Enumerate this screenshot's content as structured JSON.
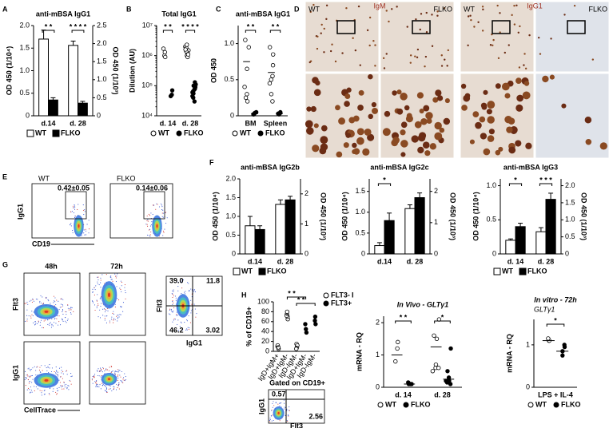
{
  "chart_data": [
    {
      "type": "bar",
      "panel": "A",
      "title": "anti-mBSA IgG1",
      "ylabel": "OD 450 (1/10⁴)",
      "y2label": "OD 450 (1/10³)",
      "categories": [
        "d.14",
        "d. 28"
      ],
      "point_axes": [
        "y",
        "y2"
      ],
      "series": [
        {
          "name": "WT",
          "color": "#ffffff",
          "values": [
            1.7,
            1.95
          ],
          "errors": [
            0.2,
            0.12
          ]
        },
        {
          "name": "FLKO",
          "color": "#000000",
          "values": [
            0.35,
            0.35
          ],
          "errors": [
            0.05,
            0.05
          ]
        }
      ],
      "ylim": [
        0,
        2
      ],
      "yticks": [
        0,
        0.5,
        {
          "value": 1,
          "label": "1.0"
        },
        1.5,
        {
          "value": 2,
          "label": "2.0"
        }
      ],
      "y2lim": [
        0,
        2.5
      ],
      "y2ticks": [
        0,
        0.5,
        {
          "value": 1,
          "label": "1.0"
        },
        1.5,
        {
          "value": 2,
          "label": "2.0"
        },
        2.5
      ],
      "significance": [
        "* *",
        "* * * *"
      ]
    },
    {
      "type": "dot",
      "panel": "B",
      "title": "Total IgG1",
      "ylabel": "Dilution (AU)",
      "log_scale": true,
      "categories": [
        "d. 14",
        "d. 28"
      ],
      "series": [
        {
          "name": "WT",
          "marker": "open",
          "values": [
            [
              1300000,
              1000000,
              1700000,
              900000
            ],
            [
              1500000,
              2000000,
              1200000,
              1800000,
              1000000,
              2300000,
              1400000,
              900000,
              1600000,
              1100000
            ]
          ]
        },
        {
          "name": "FLKO",
          "marker": "filled",
          "values": [
            [
              70000,
              50000,
              45000
            ],
            [
              90000,
              60000,
              130000,
              40000,
              75000,
              55000,
              100000,
              30000,
              65000,
              80000,
              45000,
              110000
            ]
          ]
        }
      ],
      "ylim": [
        10000,
        10000000
      ],
      "yticks": [
        {
          "value": 10000,
          "label": "10⁴"
        },
        {
          "value": 100000,
          "label": "10⁵"
        },
        {
          "value": 1000000,
          "label": "10⁶"
        },
        {
          "value": 10000000,
          "label": "10⁷"
        }
      ],
      "significance": [
        "* *",
        "* * * *"
      ]
    },
    {
      "type": "dot",
      "panel": "C",
      "title": "anti-mBSA IgG1",
      "ylabel": "OD 450",
      "categories": [
        "BM",
        "Spleen"
      ],
      "series": [
        {
          "name": "WT",
          "marker": "open",
          "values": [
            [
              0.95,
              1.05,
              0.65,
              0.3,
              0.25,
              0.2,
              0.4
            ],
            [
              0.85,
              0.95,
              0.55,
              0.5,
              0.3,
              0.2,
              0.45,
              0.7
            ]
          ],
          "lines": [
            0.75,
            0.6
          ]
        },
        {
          "name": "FLKO",
          "marker": "filled",
          "values": [
            [
              0.05,
              0.02,
              0.03,
              0.04,
              0.02
            ],
            [
              0.05,
              0.03,
              0.02,
              0.04,
              0.03
            ]
          ],
          "lines": [
            0.03,
            0.03
          ]
        }
      ],
      "ylim": [
        0,
        1.25
      ],
      "yticks": [
        0,
        0.5,
        {
          "value": 1,
          "label": "1.0"
        }
      ],
      "significance": [
        "* *",
        "* *"
      ]
    },
    {
      "type": "bar",
      "panel": "F",
      "title": "anti-mBSA IgG2b",
      "ylabel": "OD 450 (1/10⁴)",
      "y2label": "OD 450 (1/10³)",
      "categories": [
        "d.14",
        "d. 28"
      ],
      "point_axes": [
        "y",
        "y2"
      ],
      "series": [
        {
          "name": "WT",
          "color": "#ffffff",
          "values": [
            0.75,
            1.65
          ],
          "errors": [
            0.25,
            0.15
          ]
        },
        {
          "name": "FLKO",
          "color": "#000000",
          "values": [
            0.65,
            1.8
          ],
          "errors": [
            0.1,
            0.12
          ]
        }
      ],
      "ylim": [
        0,
        2
      ],
      "yticks": [
        0,
        0.5,
        {
          "value": 1,
          "label": "1.0"
        },
        1.5,
        {
          "value": 2,
          "label": "2.0"
        }
      ],
      "y2lim": [
        0,
        2.5
      ],
      "y2ticks": [
        0,
        1,
        2
      ],
      "significance": [
        null,
        null
      ]
    },
    {
      "type": "bar",
      "title": "anti-mBSA IgG2c",
      "ylabel": "OD 450 (1/10⁴)",
      "y2label": "OD 450 (1/10³)",
      "categories": [
        "d.14",
        "d. 28"
      ],
      "point_axes": [
        "y",
        "y2"
      ],
      "show_legend": false,
      "series": [
        {
          "name": "WT",
          "color": "#ffffff",
          "values": [
            0.2,
            1.45
          ],
          "errors": [
            0.07,
            0.12
          ]
        },
        {
          "name": "FLKO",
          "color": "#000000",
          "values": [
            0.8,
            1.8
          ],
          "errors": [
            0.18,
            0.15
          ]
        }
      ],
      "ylim": [
        0,
        1.8
      ],
      "yticks": [
        0,
        0.5,
        {
          "value": 1,
          "label": "1.0"
        },
        1.5
      ],
      "y2lim": [
        0,
        2.4
      ],
      "y2ticks": [
        0,
        1,
        2
      ],
      "significance": [
        "*",
        null
      ]
    },
    {
      "type": "bar",
      "title": "anti-mBSA IgG3",
      "ylabel": "OD 450 (1/10⁴)",
      "y2label": "OD 450 (1/10³)",
      "categories": [
        "d. 14",
        "d. 28"
      ],
      "point_axes": [
        "y",
        "y2"
      ],
      "series": [
        {
          "name": "WT",
          "color": "#ffffff",
          "values": [
            0.2,
            0.65
          ],
          "errors": [
            0.02,
            0.12
          ]
        },
        {
          "name": "FLKO",
          "color": "#000000",
          "values": [
            0.4,
            1.6
          ],
          "errors": [
            0.05,
            0.18
          ]
        }
      ],
      "ylim": [
        0,
        1.1
      ],
      "yticks": [
        0,
        0.5,
        {
          "value": 1,
          "label": "1.0"
        }
      ],
      "y2lim": [
        0,
        2.2
      ],
      "y2ticks": [
        0,
        0.5,
        {
          "value": 1,
          "label": "1.0"
        },
        1.5,
        {
          "value": 2,
          "label": "2.0"
        }
      ],
      "significance": [
        "*",
        "* * *"
      ]
    },
    {
      "type": "dot",
      "panel": "H",
      "ylabel": "% of CD19+",
      "rotate_labels": true,
      "legend": "top-right",
      "categories": [
        "IgD+IgM+",
        "IgD+IgM-",
        "IgD-IgM-",
        "IgD+IgM-",
        "IgD-IgM-"
      ],
      "series": [
        {
          "name": "FLT3-",
          "marker": "open",
          "values": [
            [
              5,
              10,
              12,
              8
            ],
            [
              65,
              75,
              80,
              70,
              72
            ],
            [
              8,
              15,
              5,
              12
            ],
            null,
            null
          ],
          "lines": [
            10,
            73,
            10,
            null,
            null
          ]
        },
        {
          "name": "FLT3+",
          "marker": "filled",
          "values": [
            null,
            null,
            null,
            [
              38,
              45,
              55
            ],
            [
              55,
              70,
              62
            ]
          ],
          "lines": [
            null,
            null,
            null,
            45,
            62
          ]
        }
      ],
      "ylim": [
        0,
        100
      ],
      "yticks": [
        0,
        20,
        40,
        60,
        80,
        100
      ],
      "brackets": [
        {
          "text": "* *",
          "from": 1,
          "to": 3
        },
        {
          "text": "* *",
          "from": 2,
          "to": 4
        }
      ]
    },
    {
      "type": "dot",
      "panel": "I",
      "title": "In Vivo - GLTγ1",
      "ylabel": "mRNA - RQ",
      "categories": [
        "d. 14",
        "d. 28"
      ],
      "series": [
        {
          "name": "WT",
          "marker": "open",
          "values": [
            [
              1.4,
              1.2,
              0.8
            ],
            [
              2.1,
              1.6,
              1.5,
              0.7,
              0.6,
              0.6,
              0.5
            ]
          ],
          "lines": [
            1.0,
            1.25
          ]
        },
        {
          "name": "FLKO",
          "marker": "filled",
          "values": [
            [
              0.1,
              0.15,
              0.1,
              0.1
            ],
            [
              1.2,
              0.5,
              0.2,
              0.3,
              0.15,
              0.1,
              0.2
            ]
          ],
          "lines": [
            0.1,
            0.25
          ]
        }
      ],
      "ylim": [
        0,
        2.2
      ],
      "yticks": [
        0,
        1,
        2
      ],
      "significance": [
        "* *",
        "*"
      ]
    },
    {
      "type": "dot",
      "title": "In vitro - 72h",
      "subtitle": "GLTγ1",
      "ylabel": "mRNA - RQ",
      "categories": [
        "LPS + IL-4"
      ],
      "series": [
        {
          "name": "WT",
          "marker": "open",
          "values": [
            [
              1.1,
              1.1,
              1.15
            ]
          ],
          "lines": [
            1.1
          ]
        },
        {
          "name": "FLKO",
          "marker": "filled",
          "values": [
            [
              0.95,
              0.75,
              0.85,
              1.0
            ]
          ],
          "lines": [
            0.85
          ]
        }
      ],
      "ylim": [
        0,
        1.6
      ],
      "yticks": [
        0,
        1
      ],
      "significance": [
        "*"
      ]
    }
  ],
  "images": {
    "D": {
      "panel": "D",
      "stains": [
        "IgM",
        "IgG1"
      ],
      "wt": "WT",
      "ko": "FLKO"
    },
    "E": {
      "panel": "E",
      "plots": [
        {
          "label": "WT",
          "gate": "0.42±0.05"
        },
        {
          "label": "FLKO",
          "gate": "0.14±0.06"
        }
      ],
      "ylabel": "IgG1",
      "xlabel": "CD19"
    },
    "G": {
      "panel": "G",
      "times": [
        "48h",
        "72h"
      ],
      "row_labels": [
        "Flt3",
        "IgG1"
      ],
      "xlabel": "CellTrace",
      "quadrant": {
        "ylabel": "Flt3",
        "xlabel": "IgG1",
        "values": [
          "39.0",
          "11.8",
          "46.2",
          "3.02"
        ]
      }
    },
    "H_flow": {
      "title": "Gated on CD19+",
      "ylabel": "IgG1",
      "xlabel": "Flt3",
      "gates": [
        "0.57",
        "2.56"
      ]
    }
  }
}
